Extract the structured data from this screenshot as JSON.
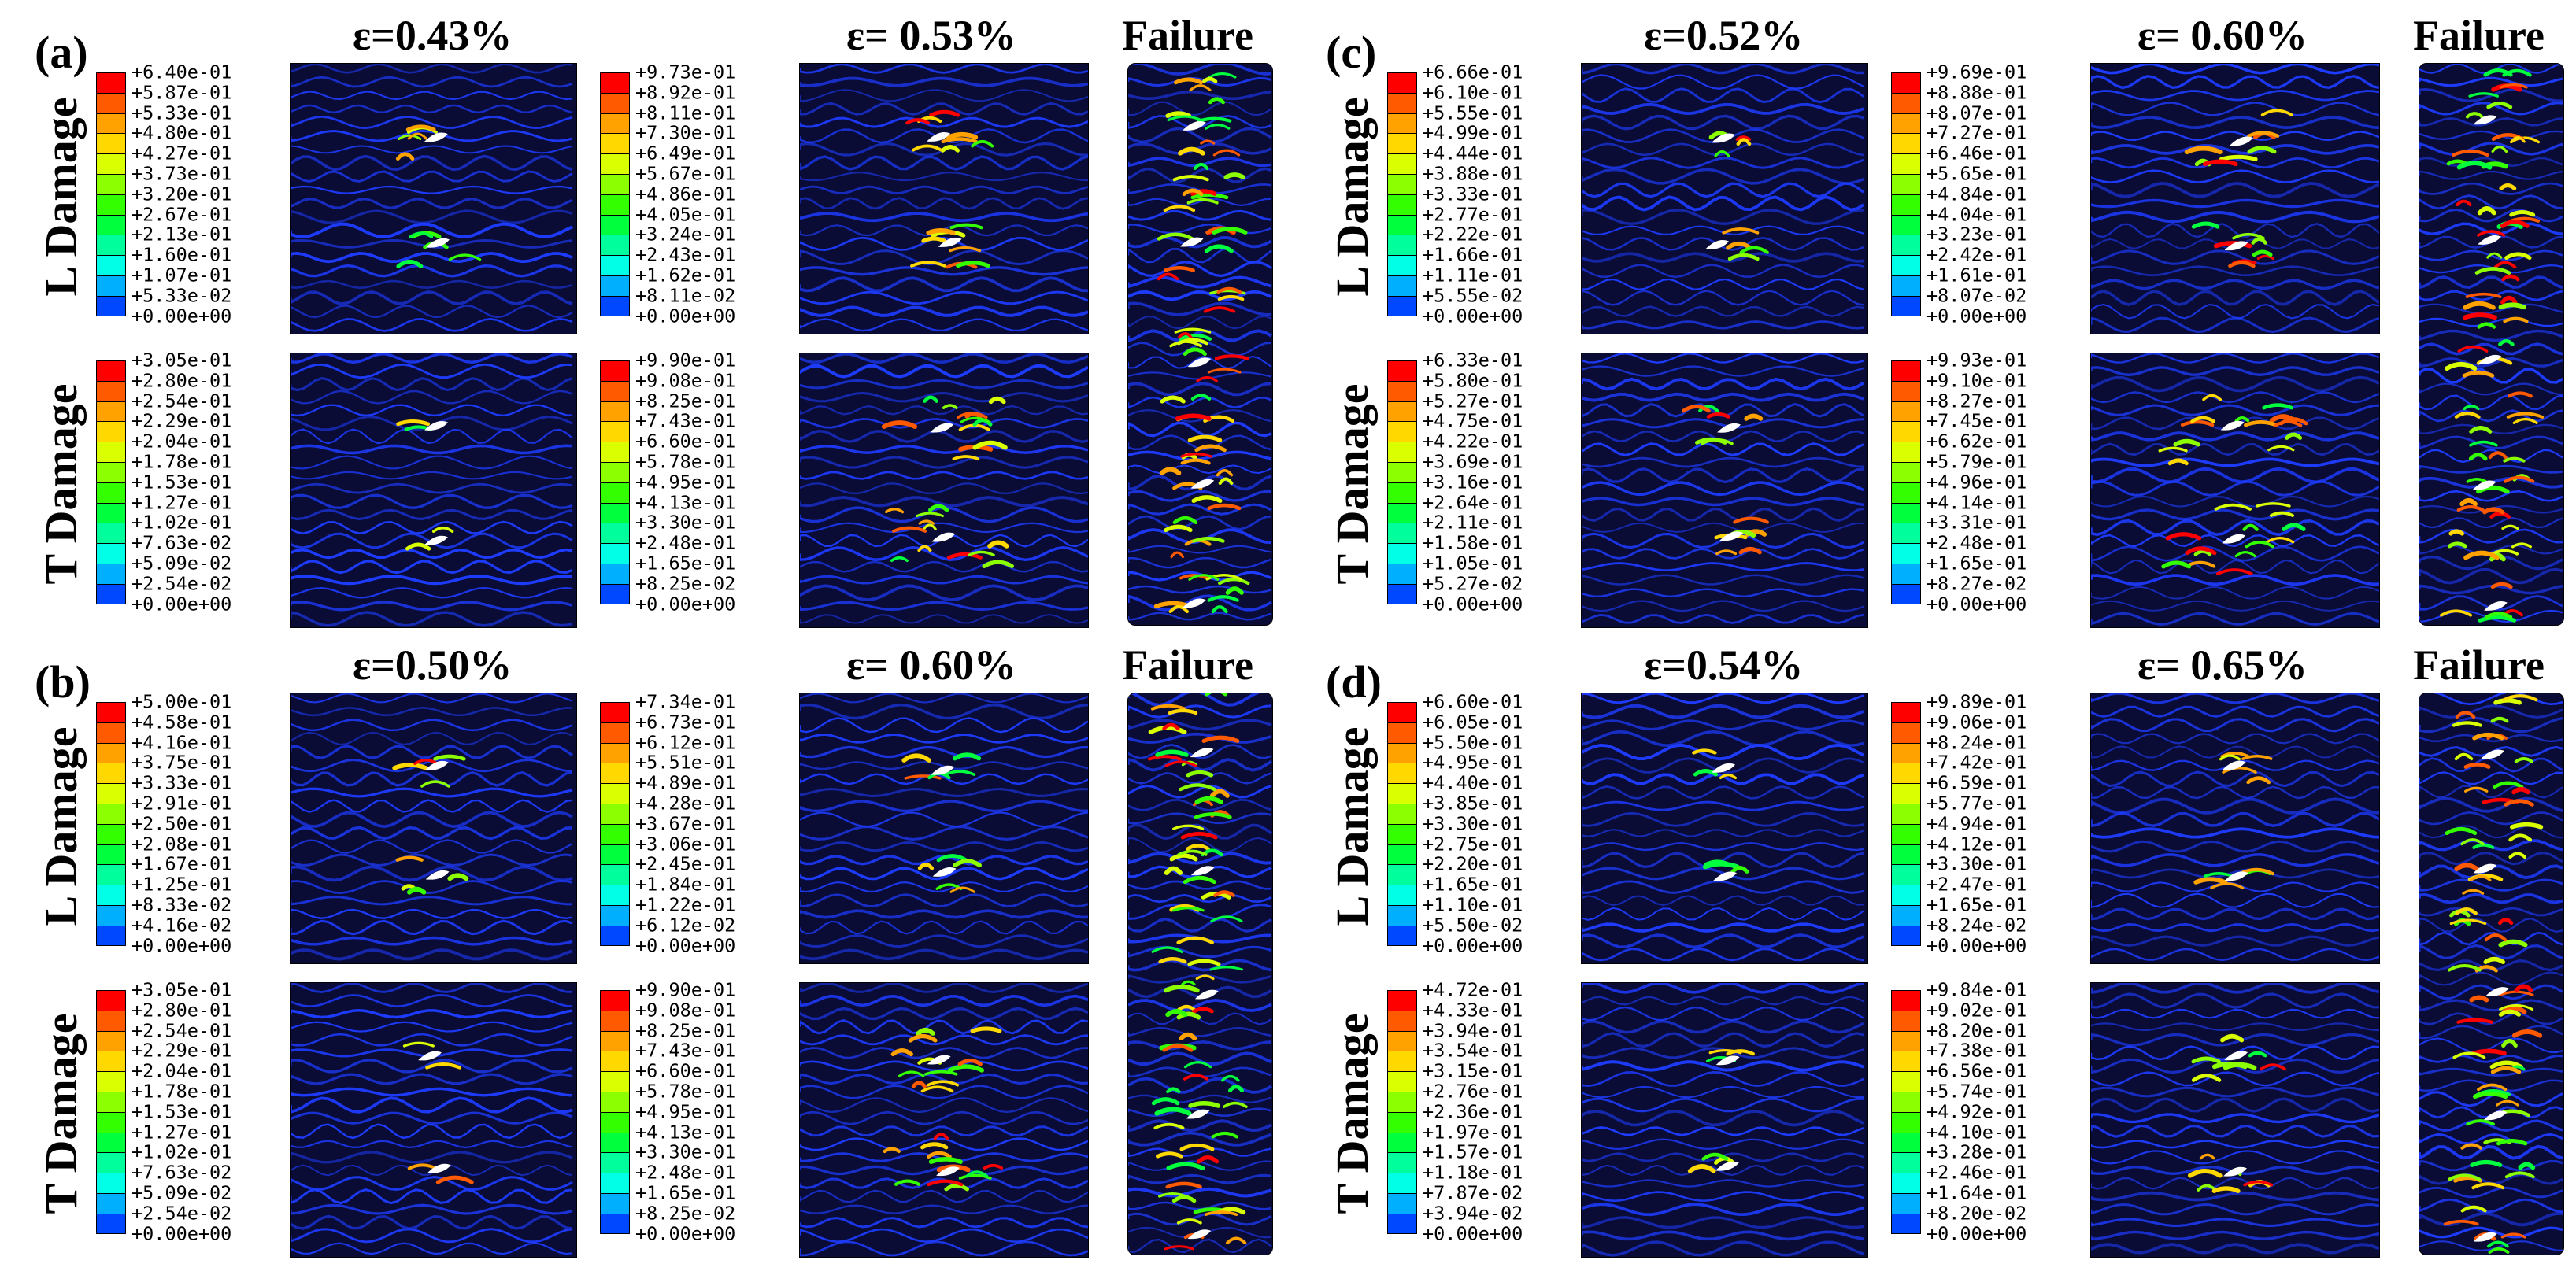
{
  "figure": {
    "row_labels": [
      "L Damage",
      "T Damage"
    ],
    "failure_label": "Failure",
    "panels": [
      {
        "id": "a",
        "letter": "(a)",
        "strain_titles": [
          "ε=0.43%",
          "ε= 0.53%"
        ],
        "legends": [
          [
            "+6.40e-01",
            "+5.87e-01",
            "+5.33e-01",
            "+4.80e-01",
            "+4.27e-01",
            "+3.73e-01",
            "+3.20e-01",
            "+2.67e-01",
            "+2.13e-01",
            "+1.60e-01",
            "+1.07e-01",
            "+5.33e-02",
            "+0.00e+00"
          ],
          [
            "+9.73e-01",
            "+8.92e-01",
            "+8.11e-01",
            "+7.30e-01",
            "+6.49e-01",
            "+5.67e-01",
            "+4.86e-01",
            "+4.05e-01",
            "+3.24e-01",
            "+2.43e-01",
            "+1.62e-01",
            "+8.11e-02",
            "+0.00e+00"
          ],
          [
            "+3.05e-01",
            "+2.80e-01",
            "+2.54e-01",
            "+2.29e-01",
            "+2.04e-01",
            "+1.78e-01",
            "+1.53e-01",
            "+1.27e-01",
            "+1.02e-01",
            "+7.63e-02",
            "+5.09e-02",
            "+2.54e-02",
            "+0.00e+00"
          ],
          [
            "+9.90e-01",
            "+9.08e-01",
            "+8.25e-01",
            "+7.43e-01",
            "+6.60e-01",
            "+5.78e-01",
            "+4.95e-01",
            "+4.13e-01",
            "+3.30e-01",
            "+2.48e-01",
            "+1.65e-01",
            "+8.25e-02",
            "+0.00e+00"
          ]
        ]
      },
      {
        "id": "b",
        "letter": "(b)",
        "strain_titles": [
          "ε=0.50%",
          "ε= 0.60%"
        ],
        "legends": [
          [
            "+5.00e-01",
            "+4.58e-01",
            "+4.16e-01",
            "+3.75e-01",
            "+3.33e-01",
            "+2.91e-01",
            "+2.50e-01",
            "+2.08e-01",
            "+1.67e-01",
            "+1.25e-01",
            "+8.33e-02",
            "+4.16e-02",
            "+0.00e+00"
          ],
          [
            "+7.34e-01",
            "+6.73e-01",
            "+6.12e-01",
            "+5.51e-01",
            "+4.89e-01",
            "+4.28e-01",
            "+3.67e-01",
            "+3.06e-01",
            "+2.45e-01",
            "+1.84e-01",
            "+1.22e-01",
            "+6.12e-02",
            "+0.00e+00"
          ],
          [
            "+3.05e-01",
            "+2.80e-01",
            "+2.54e-01",
            "+2.29e-01",
            "+2.04e-01",
            "+1.78e-01",
            "+1.53e-01",
            "+1.27e-01",
            "+1.02e-01",
            "+7.63e-02",
            "+5.09e-02",
            "+2.54e-02",
            "+0.00e+00"
          ],
          [
            "+9.90e-01",
            "+9.08e-01",
            "+8.25e-01",
            "+7.43e-01",
            "+6.60e-01",
            "+5.78e-01",
            "+4.95e-01",
            "+4.13e-01",
            "+3.30e-01",
            "+2.48e-01",
            "+1.65e-01",
            "+8.25e-02",
            "+0.00e+00"
          ]
        ]
      },
      {
        "id": "c",
        "letter": "(c)",
        "strain_titles": [
          "ε=0.52%",
          "ε= 0.60%"
        ],
        "legends": [
          [
            "+6.66e-01",
            "+6.10e-01",
            "+5.55e-01",
            "+4.99e-01",
            "+4.44e-01",
            "+3.88e-01",
            "+3.33e-01",
            "+2.77e-01",
            "+2.22e-01",
            "+1.66e-01",
            "+1.11e-01",
            "+5.55e-02",
            "+0.00e+00"
          ],
          [
            "+9.69e-01",
            "+8.88e-01",
            "+8.07e-01",
            "+7.27e-01",
            "+6.46e-01",
            "+5.65e-01",
            "+4.84e-01",
            "+4.04e-01",
            "+3.23e-01",
            "+2.42e-01",
            "+1.61e-01",
            "+8.07e-02",
            "+0.00e+00"
          ],
          [
            "+6.33e-01",
            "+5.80e-01",
            "+5.27e-01",
            "+4.75e-01",
            "+4.22e-01",
            "+3.69e-01",
            "+3.16e-01",
            "+2.64e-01",
            "+2.11e-01",
            "+1.58e-01",
            "+1.05e-01",
            "+5.27e-02",
            "+0.00e+00"
          ],
          [
            "+9.93e-01",
            "+9.10e-01",
            "+8.27e-01",
            "+7.45e-01",
            "+6.62e-01",
            "+5.79e-01",
            "+4.96e-01",
            "+4.14e-01",
            "+3.31e-01",
            "+2.48e-01",
            "+1.65e-01",
            "+8.27e-02",
            "+0.00e+00"
          ]
        ]
      },
      {
        "id": "d",
        "letter": "(d)",
        "strain_titles": [
          "ε=0.54%",
          "ε= 0.65%"
        ],
        "legends": [
          [
            "+6.60e-01",
            "+6.05e-01",
            "+5.50e-01",
            "+4.95e-01",
            "+4.40e-01",
            "+3.85e-01",
            "+3.30e-01",
            "+2.75e-01",
            "+2.20e-01",
            "+1.65e-01",
            "+1.10e-01",
            "+5.50e-02",
            "+0.00e+00"
          ],
          [
            "+9.89e-01",
            "+9.06e-01",
            "+8.24e-01",
            "+7.42e-01",
            "+6.59e-01",
            "+5.77e-01",
            "+4.94e-01",
            "+4.12e-01",
            "+3.30e-01",
            "+2.47e-01",
            "+1.65e-01",
            "+8.24e-02",
            "+0.00e+00"
          ],
          [
            "+4.72e-01",
            "+4.33e-01",
            "+3.94e-01",
            "+3.54e-01",
            "+3.15e-01",
            "+2.76e-01",
            "+2.36e-01",
            "+1.97e-01",
            "+1.57e-01",
            "+1.18e-01",
            "+7.87e-02",
            "+3.94e-02",
            "+0.00e+00"
          ],
          [
            "+9.84e-01",
            "+9.02e-01",
            "+8.20e-01",
            "+7.38e-01",
            "+6.56e-01",
            "+5.74e-01",
            "+4.92e-01",
            "+4.10e-01",
            "+3.28e-01",
            "+2.46e-01",
            "+1.64e-01",
            "+8.20e-02",
            "+0.00e+00"
          ]
        ]
      }
    ],
    "colormap": [
      "#ff0000",
      "#ff5a00",
      "#ffa200",
      "#ffd800",
      "#d9ff00",
      "#8cff00",
      "#33ff00",
      "#00ff3d",
      "#00ff9c",
      "#00ffe6",
      "#00b0ff",
      "#0048ff",
      "#0000ff"
    ],
    "fabric_background": "#0a0c36",
    "tow_color": "#1e3cff",
    "crack_color": "#ffffff"
  }
}
